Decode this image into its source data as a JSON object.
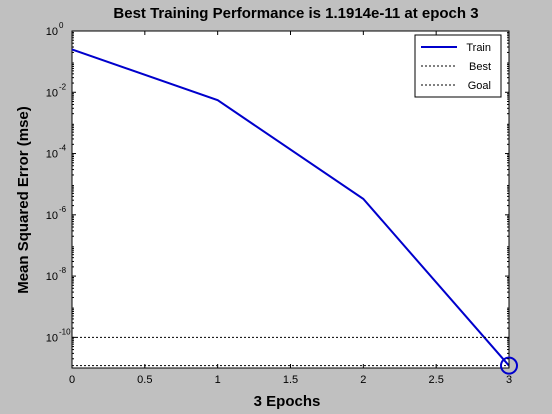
{
  "chart_data": {
    "type": "line",
    "title": "Best Training Performance is 1.1914e-11 at epoch 3",
    "xlabel": "3 Epochs",
    "ylabel": "Mean Squared Error  (mse)",
    "xlim": [
      0,
      3
    ],
    "ylim_log10": [
      -11,
      0
    ],
    "y_scale": "log",
    "x_ticks": [
      "0",
      "0.5",
      "1",
      "1.5",
      "2",
      "2.5",
      "3"
    ],
    "y_ticks": [
      {
        "base": "10",
        "exp": "0"
      },
      {
        "base": "10",
        "exp": "-2"
      },
      {
        "base": "10",
        "exp": "-4"
      },
      {
        "base": "10",
        "exp": "-6"
      },
      {
        "base": "10",
        "exp": "-8"
      },
      {
        "base": "10",
        "exp": "-10"
      }
    ],
    "series": [
      {
        "name": "Train",
        "color": "#0000cc",
        "style": "solid",
        "x": [
          0,
          1,
          2,
          3
        ],
        "y": [
          0.25,
          0.0055,
          3.3e-06,
          1.1914e-11
        ]
      },
      {
        "name": "Best",
        "color": "#000000",
        "style": "dotted",
        "x": [
          3,
          3
        ],
        "y": [
          1.1914e-11,
          1
        ]
      },
      {
        "name": "Goal",
        "color": "#000000",
        "style": "dotted",
        "x": [
          0,
          3
        ],
        "y": [
          1e-10,
          1e-10
        ]
      }
    ],
    "best_marker": {
      "x": 3,
      "y": 1.1914e-11,
      "color": "#0000cc",
      "shape": "circle"
    },
    "extra_hline": {
      "y": 1.1914e-11,
      "style": "dotted",
      "color": "#000000"
    },
    "legend": {
      "placement": "top-right",
      "entries": [
        "Train",
        "Best",
        "Goal"
      ]
    },
    "grid": false
  }
}
